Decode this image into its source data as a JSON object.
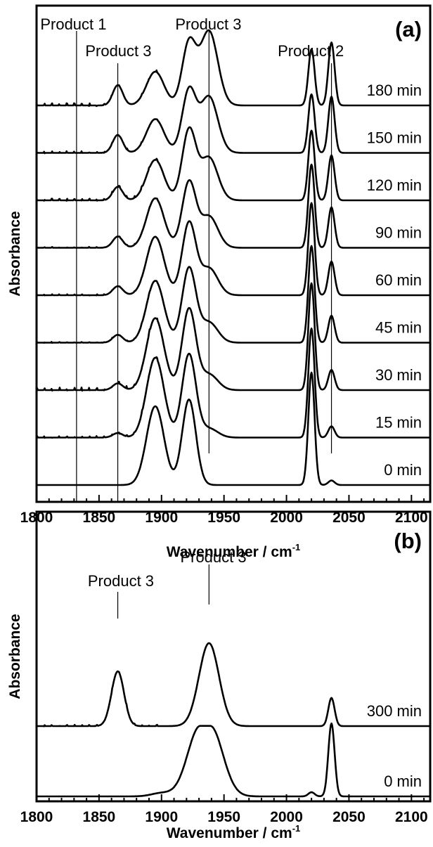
{
  "chart_data": [
    {
      "type": "line",
      "panel_label": "(a)",
      "xlabel": "Wavenumber / cm",
      "xlabel_sup": "-1",
      "ylabel": "Absorbance",
      "xlim": [
        1800,
        2115
      ],
      "xticks": [
        1800,
        1850,
        1900,
        1950,
        2000,
        2050,
        2100
      ],
      "grid": false,
      "reference_lines": [
        {
          "label": "Product 1",
          "x": 1832,
          "label_at": 1803,
          "label_row": 0
        },
        {
          "label": "Product 3",
          "x": 1865,
          "label_at": 1839,
          "label_row": 1
        },
        {
          "label": "Product 3",
          "x": 1938,
          "label_at": 1911,
          "label_row": 0
        },
        {
          "label": "Product 2",
          "x": 2036,
          "label_at": 1993,
          "label_row": 1
        }
      ],
      "series": [
        {
          "name": "0 min",
          "peaks": [
            [
              1895,
              0.7,
              7
            ],
            [
              1922,
              0.76,
              5.5
            ],
            [
              2020,
              1.0,
              2.5
            ],
            [
              2036,
              0.04,
              2.5
            ]
          ],
          "noise": 0.0
        },
        {
          "name": "15 min",
          "peaks": [
            [
              1895,
              0.71,
              7
            ],
            [
              1922,
              0.74,
              5.5
            ],
            [
              2020,
              0.97,
              2.5
            ],
            [
              2036,
              0.1,
              2.5
            ],
            [
              1865,
              0.04,
              4
            ],
            [
              1938,
              0.08,
              7
            ]
          ],
          "noise": 0.02
        },
        {
          "name": "30 min",
          "peaks": [
            [
              1895,
              0.64,
              7
            ],
            [
              1922,
              0.72,
              5.5
            ],
            [
              2020,
              0.95,
              2.5
            ],
            [
              2036,
              0.18,
              2.5
            ],
            [
              1865,
              0.06,
              4
            ],
            [
              1938,
              0.14,
              7
            ]
          ],
          "noise": 0.03
        },
        {
          "name": "45 min",
          "peaks": [
            [
              1895,
              0.55,
              7
            ],
            [
              1922,
              0.66,
              5.5
            ],
            [
              2020,
              0.86,
              2.5
            ],
            [
              2036,
              0.24,
              2.5
            ],
            [
              1865,
              0.07,
              4
            ],
            [
              1938,
              0.18,
              7
            ]
          ],
          "noise": 0.01
        },
        {
          "name": "60 min",
          "peaks": [
            [
              1895,
              0.52,
              7
            ],
            [
              1922,
              0.64,
              5.5
            ],
            [
              2020,
              0.82,
              2.5
            ],
            [
              2036,
              0.3,
              2.5
            ],
            [
              1865,
              0.08,
              4
            ],
            [
              1938,
              0.24,
              7
            ]
          ],
          "noise": 0.01
        },
        {
          "name": "90 min",
          "peaks": [
            [
              1895,
              0.44,
              7
            ],
            [
              1922,
              0.58,
              5.5
            ],
            [
              2020,
              0.74,
              2.5
            ],
            [
              2036,
              0.36,
              2.5
            ],
            [
              1865,
              0.1,
              4
            ],
            [
              1938,
              0.28,
              7
            ]
          ],
          "noise": 0.01
        },
        {
          "name": "120 min",
          "peaks": [
            [
              1895,
              0.36,
              7
            ],
            [
              1922,
              0.62,
              5.5
            ],
            [
              2020,
              0.62,
              2.5
            ],
            [
              2036,
              0.4,
              2.5
            ],
            [
              1865,
              0.12,
              4
            ],
            [
              1938,
              0.38,
              7
            ]
          ],
          "noise": 0.02
        },
        {
          "name": "150 min",
          "peaks": [
            [
              1895,
              0.3,
              7
            ],
            [
              1922,
              0.55,
              5.5
            ],
            [
              2020,
              0.52,
              2.5
            ],
            [
              2036,
              0.5,
              2.5
            ],
            [
              1865,
              0.16,
              4
            ],
            [
              1938,
              0.5,
              7
            ]
          ],
          "noise": 0.02
        },
        {
          "name": "180 min",
          "peaks": [
            [
              1895,
              0.3,
              7
            ],
            [
              1922,
              0.55,
              5.5
            ],
            [
              2020,
              0.5,
              2.5
            ],
            [
              2036,
              0.56,
              2.5
            ],
            [
              1865,
              0.18,
              4
            ],
            [
              1938,
              0.66,
              7
            ]
          ],
          "noise": 0.03
        }
      ]
    },
    {
      "type": "line",
      "panel_label": "(b)",
      "xlabel": "Wavenumber / cm",
      "xlabel_sup": "-1",
      "ylabel": "Absorbance",
      "xlim": [
        1800,
        2115
      ],
      "xticks": [
        1800,
        1850,
        1900,
        1950,
        2000,
        2050,
        2100
      ],
      "grid": false,
      "reference_lines": [
        {
          "label": "Product 3",
          "x": 1865,
          "label_at": 1841,
          "label_row": 1
        },
        {
          "label": "Product 3",
          "x": 1938,
          "label_at": 1915,
          "label_row": 0
        }
      ],
      "series": [
        {
          "name": "0 min",
          "peaks": [
            [
              1935,
              0.85,
              10,
              4
            ],
            [
              2036,
              0.88,
              2.5
            ],
            [
              2020,
              0.05,
              2.5
            ],
            [
              1900,
              0.04,
              8
            ]
          ],
          "noise": 0.0
        },
        {
          "name": "300 min",
          "peaks": [
            [
              1865,
              0.66,
              5
            ],
            [
              1938,
              1.0,
              8
            ],
            [
              2036,
              0.34,
              2.5
            ]
          ],
          "noise": 0.02
        }
      ]
    }
  ]
}
